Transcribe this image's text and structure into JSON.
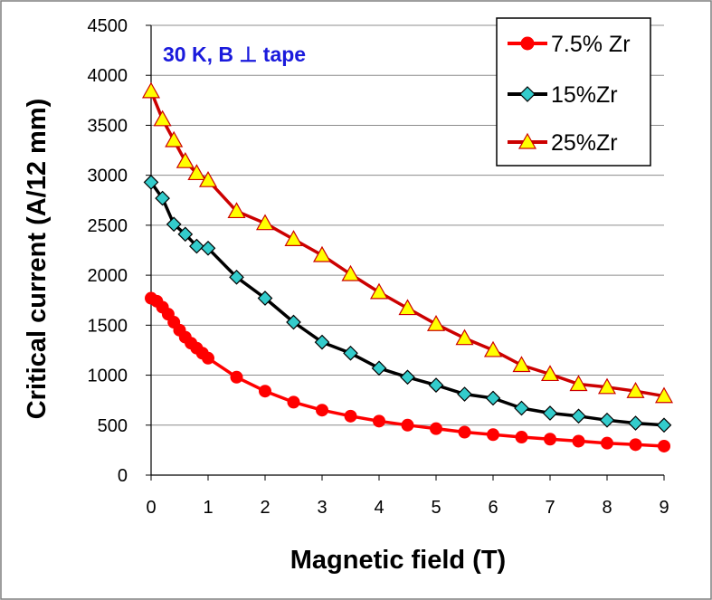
{
  "chart_data": {
    "type": "line",
    "title": "",
    "xlabel": "Magnetic field (T)",
    "ylabel": "Critical current (A/12 mm)",
    "xlim": [
      0,
      9
    ],
    "ylim": [
      0,
      4500
    ],
    "xticks": [
      0,
      1,
      2,
      3,
      4,
      5,
      6,
      7,
      8,
      9
    ],
    "yticks": [
      0,
      500,
      1000,
      1500,
      2000,
      2500,
      3000,
      3500,
      4000,
      4500
    ],
    "grid": "horizontal",
    "legend_position": "top-right",
    "annotation": "30 K, B ⊥ tape",
    "series": [
      {
        "name": "7.5% Zr",
        "color": "#ff0000",
        "marker": "circle",
        "x": [
          0,
          0.1,
          0.2,
          0.3,
          0.4,
          0.5,
          0.6,
          0.7,
          0.8,
          0.9,
          1,
          1.5,
          2,
          2.5,
          3,
          3.5,
          4,
          4.5,
          5,
          5.5,
          6,
          6.5,
          7,
          7.5,
          8,
          8.5,
          9
        ],
        "y": [
          1770,
          1740,
          1680,
          1610,
          1530,
          1450,
          1380,
          1320,
          1270,
          1220,
          1170,
          980,
          840,
          730,
          650,
          590,
          540,
          500,
          465,
          430,
          405,
          380,
          360,
          340,
          320,
          305,
          290
        ]
      },
      {
        "name": "15%Zr",
        "color": "#000000",
        "marker_fill": "#33cccc",
        "marker": "diamond",
        "x": [
          0,
          0.2,
          0.4,
          0.6,
          0.8,
          1,
          1.5,
          2,
          2.5,
          3,
          3.5,
          4,
          4.5,
          5,
          5.5,
          6,
          6.5,
          7,
          7.5,
          8,
          8.5,
          9
        ],
        "y": [
          2930,
          2770,
          2510,
          2410,
          2290,
          2270,
          1980,
          1770,
          1530,
          1330,
          1220,
          1070,
          980,
          900,
          810,
          770,
          670,
          620,
          590,
          550,
          520,
          500
        ]
      },
      {
        "name": "25%Zr",
        "color": "#cc0000",
        "marker_fill": "#ffff00",
        "marker": "triangle",
        "x": [
          0,
          0.2,
          0.4,
          0.6,
          0.8,
          1,
          1.5,
          2,
          2.5,
          3,
          3.5,
          4,
          4.5,
          5,
          5.5,
          6,
          6.5,
          7,
          7.5,
          8,
          8.5,
          9
        ],
        "y": [
          3840,
          3560,
          3350,
          3140,
          3020,
          2950,
          2640,
          2520,
          2360,
          2200,
          2010,
          1830,
          1670,
          1510,
          1370,
          1250,
          1100,
          1010,
          910,
          880,
          840,
          790
        ]
      }
    ]
  }
}
